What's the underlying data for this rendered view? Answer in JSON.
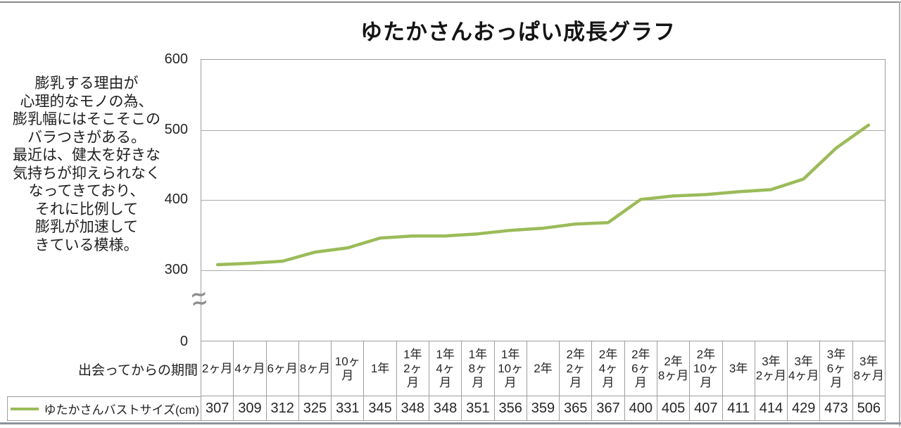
{
  "annotation": "膨乳する理由が\n心理的なモノの為、\n膨乳幅にはそこそこの\nバラつきがある。\n最近は、健太を好きな\n気持ちが抑えられなく\nなってきており、\nそれに比例して\n膨乳が加速して\nきている模様。",
  "axis_break_symbol": "∼\n∼",
  "colors": {
    "series_line": "#9BBB59",
    "grid": "#ABABAB",
    "table_border": "#9E9E9E",
    "text": "#262626"
  },
  "chart_data": {
    "type": "line",
    "title": "ゆたかさんおっぱい成長グラフ",
    "xlabel": "出会ってからの期間",
    "categories": [
      "2ヶ月",
      "4ヶ月",
      "6ヶ月",
      "8ヶ月",
      "10ヶ月",
      "1年",
      "1年2ヶ月",
      "1年4ヶ月",
      "1年8ヶ月",
      "1年10ヶ月",
      "2年",
      "2年2ヶ月",
      "2年4ヶ月",
      "2年6ヶ月",
      "2年8ヶ月",
      "2年10ヶ月",
      "3年",
      "3年2ヶ月",
      "3年4ヶ月",
      "3年6ヶ月",
      "3年8ヶ月"
    ],
    "categories_display": [
      "2ヶ月",
      "4ヶ月",
      "6ヶ月",
      "8ヶ月",
      "10ヶ\n月",
      "1年",
      "1年\n2ヶ\n月",
      "1年\n4ヶ\n月",
      "1年\n8ヶ\n月",
      "1年\n10ヶ\n月",
      "2年",
      "2年\n2ヶ\n月",
      "2年\n4ヶ\n月",
      "2年\n6ヶ\n月",
      "2年\n8ヶ月",
      "2年\n10ヶ\n月",
      "3年",
      "3年\n2ヶ月",
      "3年\n4ヶ月",
      "3年\n6ヶ\n月",
      "3年\n8ヶ月"
    ],
    "series": [
      {
        "name": "ゆたかさんバストサイズ(cm)",
        "values": [
          307,
          309,
          312,
          325,
          331,
          345,
          348,
          348,
          351,
          356,
          359,
          365,
          367,
          400,
          405,
          407,
          411,
          414,
          429,
          473,
          506
        ]
      }
    ],
    "yticks": [
      600,
      500,
      400,
      300,
      0
    ],
    "ylim_visible": [
      300,
      600
    ],
    "axis_break": true,
    "grid": true,
    "legend_position": "data-table-left"
  }
}
